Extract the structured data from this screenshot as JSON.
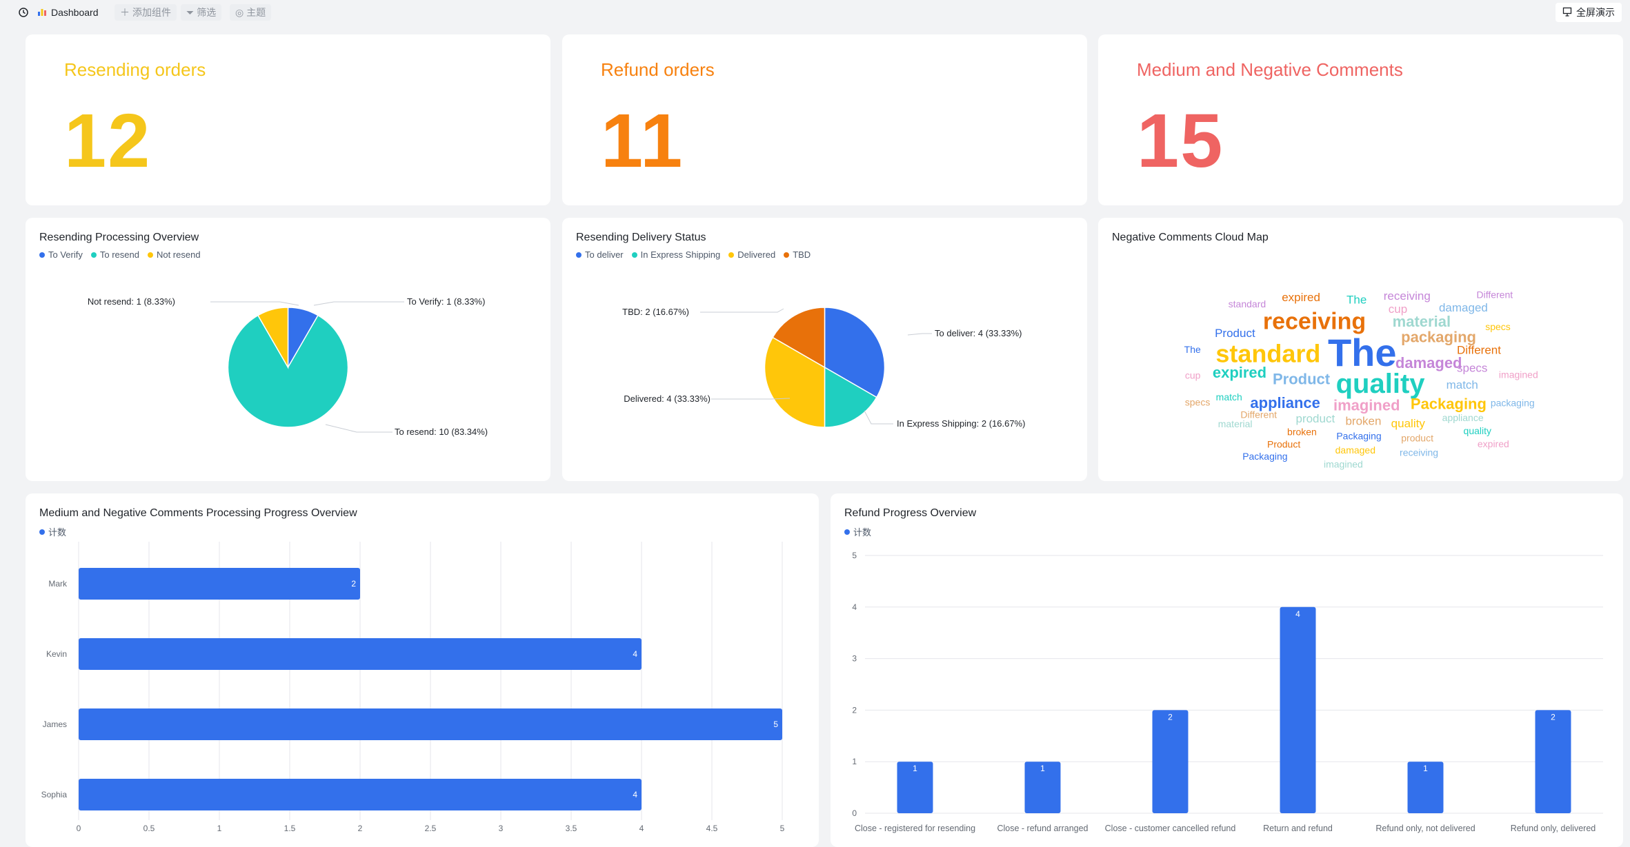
{
  "topbar": {
    "title": "Dashboard",
    "add_widget": "添加组件",
    "filter": "筛选",
    "theme": "主题",
    "fullscreen": "全屏演示"
  },
  "kpis": [
    {
      "title": "Resending orders",
      "value": "12",
      "color": "#f5c61b"
    },
    {
      "title": "Refund orders",
      "value": "11",
      "color": "#f7810f"
    },
    {
      "title": "Medium and Negative Comments",
      "value": "15",
      "color": "#ef6462"
    }
  ],
  "charts": {
    "resend_processing": {
      "title": "Resending Processing Overview",
      "legend": [
        {
          "label": "To Verify",
          "color": "#3370eb"
        },
        {
          "label": "To resend",
          "color": "#1fcfc0"
        },
        {
          "label": "Not resend",
          "color": "#ffc60a"
        }
      ],
      "labels": {
        "a": "To Verify: 1 (8.33%)",
        "b": "To resend: 10 (83.34%)",
        "c": "Not resend: 1 (8.33%)"
      }
    },
    "resend_delivery": {
      "title": "Resending Delivery Status",
      "legend": [
        {
          "label": "To deliver",
          "color": "#3370eb"
        },
        {
          "label": "In Express Shipping",
          "color": "#1fcfc0"
        },
        {
          "label": "Delivered",
          "color": "#ffc60a"
        },
        {
          "label": "TBD",
          "color": "#e8710a"
        }
      ],
      "labels": {
        "a": "To deliver: 4 (33.33%)",
        "b": "In Express Shipping: 2 (16.67%)",
        "c": "Delivered: 4 (33.33%)",
        "d": "TBD: 2 (16.67%)"
      }
    },
    "cloud": {
      "title": "Negative Comments Cloud Map",
      "words": [
        "The",
        "quality",
        "standard",
        "receiving",
        "damaged",
        "Product",
        "packaging",
        "imagined",
        "material",
        "appliance",
        "expired",
        "Packaging",
        "Different",
        "specs",
        "match",
        "broken",
        "cup",
        "product",
        "Product",
        "The",
        "quality",
        "expired",
        "receiving",
        "damaged",
        "Different",
        "imagined",
        "appliance",
        "Packaging",
        "match",
        "specs",
        "broken",
        "standard",
        "packaging",
        "product",
        "cup",
        "material",
        "The",
        "quality",
        "damaged",
        "Product",
        "Different",
        "receiving",
        "specs",
        "expired",
        "imagined",
        "Packaging"
      ]
    },
    "comments_progress": {
      "title": "Medium and Negative Comments Processing Progress Overview",
      "legend_label": "计数",
      "legend_color": "#3370eb"
    },
    "refund_progress": {
      "title": "Refund Progress Overview",
      "legend_label": "计数",
      "legend_color": "#3370eb"
    }
  },
  "chart_data": [
    {
      "type": "pie",
      "title": "Resending Processing Overview",
      "slices": [
        {
          "label": "To Verify",
          "value": 1,
          "percent": "8.33%",
          "color": "#3370eb"
        },
        {
          "label": "To resend",
          "value": 10,
          "percent": "83.34%",
          "color": "#1fcfc0"
        },
        {
          "label": "Not resend",
          "value": 1,
          "percent": "8.33%",
          "color": "#ffc60a"
        }
      ]
    },
    {
      "type": "pie",
      "title": "Resending Delivery Status",
      "slices": [
        {
          "label": "To deliver",
          "value": 4,
          "percent": "33.33%",
          "color": "#3370eb"
        },
        {
          "label": "In Express Shipping",
          "value": 2,
          "percent": "16.67%",
          "color": "#1fcfc0"
        },
        {
          "label": "Delivered",
          "value": 4,
          "percent": "33.33%",
          "color": "#ffc60a"
        },
        {
          "label": "TBD",
          "value": 2,
          "percent": "16.67%",
          "color": "#e8710a"
        }
      ]
    },
    {
      "type": "bar",
      "orientation": "horizontal",
      "title": "Medium and Negative Comments Processing Progress Overview",
      "categories": [
        "Mark",
        "Kevin",
        "James",
        "Sophia"
      ],
      "series": [
        {
          "name": "计数",
          "values": [
            2,
            4,
            5,
            4
          ]
        }
      ],
      "xlim": [
        0,
        5
      ],
      "ticks": [
        "0",
        "0.5",
        "1",
        "1.5",
        "2",
        "2.5",
        "3",
        "3.5",
        "4",
        "4.5",
        "5"
      ],
      "grid": true
    },
    {
      "type": "bar",
      "title": "Refund Progress Overview",
      "categories": [
        "Close - registered for resending",
        "Close - refund arranged",
        "Close - customer cancelled refund",
        "Return and refund",
        "Refund only, not delivered",
        "Refund only, delivered"
      ],
      "series": [
        {
          "name": "计数",
          "values": [
            1,
            1,
            2,
            4,
            1,
            2
          ]
        }
      ],
      "ylim": [
        0,
        5
      ],
      "ticks": [
        "0",
        "1",
        "2",
        "3",
        "4",
        "5"
      ],
      "grid": true
    }
  ]
}
